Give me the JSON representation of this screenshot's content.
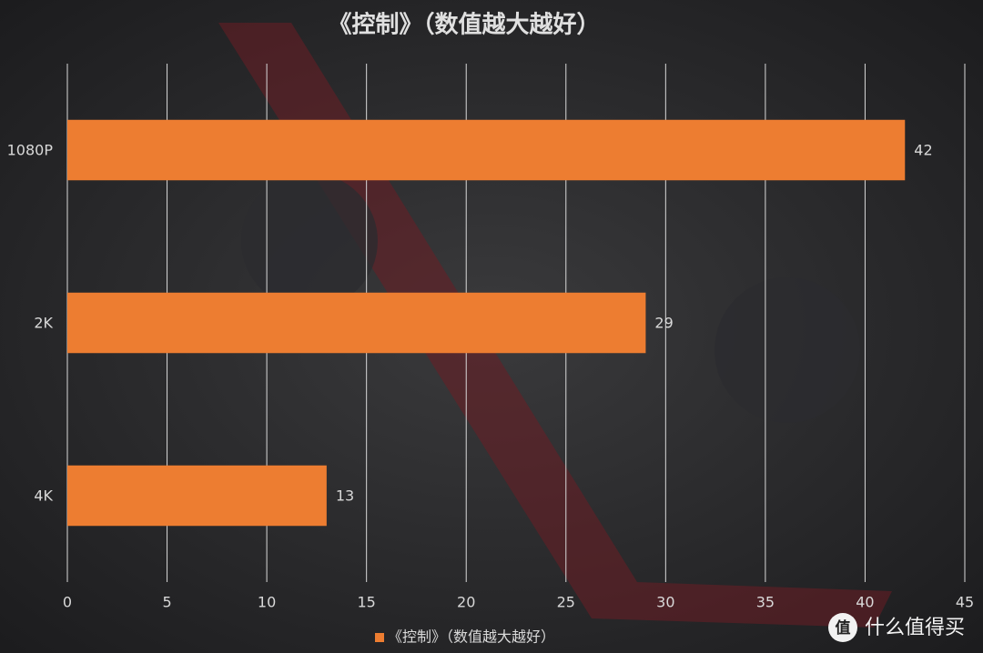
{
  "chart_data": {
    "type": "hbar",
    "title": "《控制》（数值越大越好）",
    "categories": [
      "1080P",
      "2K",
      "4K"
    ],
    "series": [
      {
        "name": "《控制》（数值越大越好）",
        "color": "#ed7d31",
        "values": [
          42,
          29,
          13
        ]
      }
    ],
    "xlim": [
      0,
      45
    ],
    "xticks": [
      0,
      5,
      10,
      15,
      20,
      25,
      30,
      35,
      40,
      45
    ],
    "grid": true,
    "legend": "bottom"
  },
  "watermark": {
    "icon": "值",
    "text": "什么值得买"
  }
}
